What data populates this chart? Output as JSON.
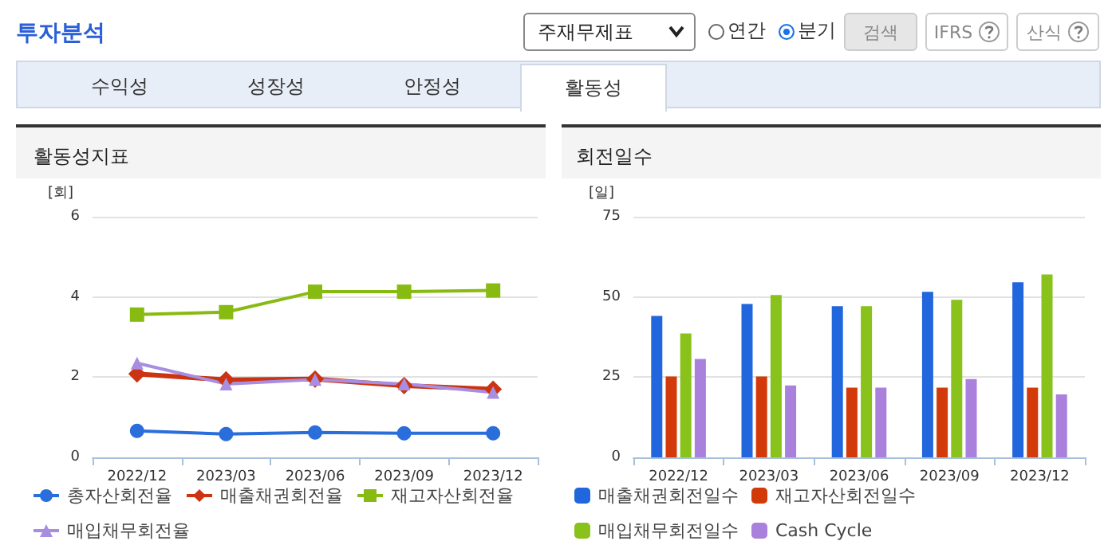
{
  "chart_data": [
    {
      "type": "other",
      "title": "투자분석",
      "annotations": [
        "주재무제표",
        "연간",
        "분기",
        "검색",
        "IFRS",
        "산식",
        "수익성",
        "성장성",
        "안정성",
        "활동성"
      ]
    },
    {
      "type": "line",
      "title": "활동성지표",
      "ylabel": "[회]",
      "categories": [
        "2022/12",
        "2023/03",
        "2023/06",
        "2023/09",
        "2023/12"
      ],
      "ylim": [
        0,
        6
      ],
      "yticks": [
        0,
        2,
        4,
        6
      ],
      "grid": "y",
      "legend": "bottom",
      "series": [
        {
          "name": "총자산회전율",
          "color": "#2a6edb",
          "marker": "circle",
          "values": [
            0.66,
            0.58,
            0.62,
            0.6,
            0.6
          ]
        },
        {
          "name": "매출채권회전율",
          "color": "#cc3311",
          "marker": "diamond",
          "values": [
            2.08,
            1.93,
            1.95,
            1.79,
            1.7
          ]
        },
        {
          "name": "재고자산회전율",
          "color": "#88bb11",
          "marker": "square",
          "values": [
            3.56,
            3.62,
            4.13,
            4.13,
            4.16
          ]
        },
        {
          "name": "매입채무회전율",
          "color": "#a88ee0",
          "marker": "triangle",
          "values": [
            2.35,
            1.83,
            1.94,
            1.83,
            1.62
          ]
        }
      ]
    },
    {
      "type": "bar",
      "title": "회전일수",
      "ylabel": "[일]",
      "categories": [
        "2022/12",
        "2023/03",
        "2023/06",
        "2023/09",
        "2023/12"
      ],
      "ylim": [
        0,
        75
      ],
      "yticks": [
        0,
        25,
        50,
        75
      ],
      "grid": "y",
      "legend": "bottom",
      "series": [
        {
          "name": "매출채권회전일수",
          "color": "#2266dd",
          "values": [
            44.1,
            47.8,
            47.1,
            51.6,
            54.6
          ]
        },
        {
          "name": "재고자산회전일수",
          "color": "#d23a0a",
          "values": [
            25.2,
            25.2,
            21.7,
            21.7,
            21.7
          ]
        },
        {
          "name": "매입채무회전일수",
          "color": "#88c21a",
          "values": [
            38.6,
            50.6,
            47.1,
            49.1,
            57.0
          ]
        },
        {
          "name": "Cash Cycle",
          "color": "#aa80dd",
          "values": [
            30.7,
            22.4,
            21.7,
            24.4,
            19.6
          ]
        }
      ]
    }
  ]
}
